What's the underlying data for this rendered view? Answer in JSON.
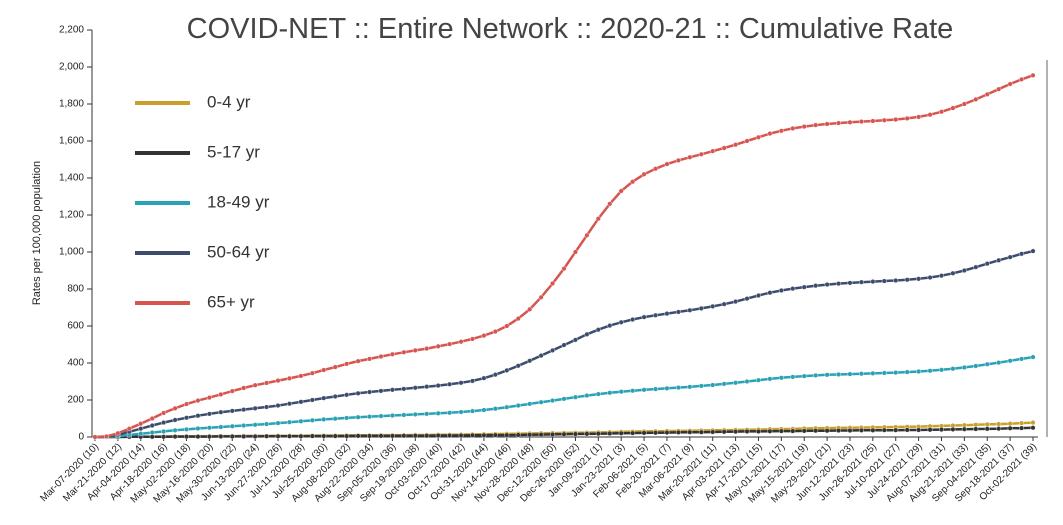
{
  "chart_data": {
    "type": "line",
    "title": "COVID-NET :: Entire Network :: 2020-21 :: Cumulative Rate",
    "y_label": "Rates per 100,000 population",
    "categories": [
      "Mar-07-2020 (10)",
      null,
      "Mar-21-2020 (12)",
      null,
      "Apr-04-2020 (14)",
      null,
      "Apr-18-2020 (16)",
      null,
      "May-02-2020 (18)",
      null,
      "May-16-2020 (20)",
      null,
      "May-30-2020 (22)",
      null,
      "Jun-13-2020 (24)",
      null,
      "Jun-27-2020 (26)",
      null,
      "Jul-11-2020 (28)",
      null,
      "Jul-25-2020 (30)",
      null,
      "Aug-08-2020 (32)",
      null,
      "Aug-22-2020 (34)",
      null,
      "Sep-05-2020 (36)",
      null,
      "Sep-19-2020 (38)",
      null,
      "Oct-03-2020 (40)",
      null,
      "Oct-17-2020 (42)",
      null,
      "Oct-31-2020 (44)",
      null,
      "Nov-14-2020 (46)",
      null,
      "Nov-28-2020 (48)",
      null,
      "Dec-12-2020 (50)",
      null,
      "Dec-26-2020 (52)",
      null,
      "Jan-09-2021 (1)",
      null,
      "Jan-23-2021 (3)",
      null,
      "Feb-06-2021 (5)",
      null,
      "Feb-20-2021 (7)",
      null,
      "Mar-06-2021 (9)",
      null,
      "Mar-20-2021 (11)",
      null,
      "Apr-03-2021 (13)",
      null,
      "Apr-17-2021 (15)",
      null,
      "May-01-2021 (17)",
      null,
      "May-15-2021 (19)",
      null,
      "May-29-2021 (21)",
      null,
      "Jun-12-2021 (23)",
      null,
      "Jun-26-2021 (25)",
      null,
      "Jul-10-2021 (27)",
      null,
      "Jul-24-2021 (29)",
      null,
      "Aug-07-2021 (31)",
      null,
      "Aug-21-2021 (33)",
      null,
      "Sep-04-2021 (35)",
      null,
      "Sep-18-2021 (37)",
      null,
      "Oct-02-2021 (39)"
    ],
    "series": [
      {
        "name": "0-4 yr",
        "color": "#c9a02c",
        "values": [
          0,
          0,
          1,
          1,
          2,
          2,
          3,
          3,
          4,
          4,
          5,
          5,
          5,
          6,
          6,
          6,
          7,
          7,
          7,
          8,
          8,
          8,
          9,
          9,
          9,
          10,
          10,
          10,
          11,
          11,
          12,
          12,
          13,
          14,
          15,
          16,
          17,
          18,
          19,
          20,
          21,
          22,
          23,
          24,
          25,
          26,
          28,
          29,
          30,
          31,
          32,
          33,
          34,
          35,
          36,
          37,
          38,
          39,
          40,
          42,
          43,
          44,
          46,
          47,
          48,
          49,
          50,
          51,
          52,
          53,
          54,
          55,
          56,
          58,
          60,
          62,
          64,
          66,
          68,
          70,
          72,
          75,
          78
        ]
      },
      {
        "name": "5-17 yr",
        "color": "#333333",
        "values": [
          0,
          0,
          0,
          1,
          1,
          1,
          1,
          2,
          2,
          2,
          2,
          3,
          3,
          3,
          3,
          4,
          4,
          4,
          4,
          5,
          5,
          5,
          5,
          6,
          6,
          6,
          6,
          7,
          7,
          7,
          8,
          8,
          8,
          9,
          9,
          10,
          10,
          11,
          12,
          13,
          14,
          15,
          16,
          17,
          18,
          19,
          20,
          21,
          22,
          23,
          24,
          25,
          26,
          26,
          27,
          28,
          29,
          30,
          30,
          31,
          32,
          32,
          33,
          34,
          34,
          35,
          35,
          36,
          36,
          37,
          37,
          38,
          38,
          39,
          40,
          41,
          42,
          43,
          44,
          45,
          47,
          48,
          50
        ]
      },
      {
        "name": "18-49 yr",
        "color": "#2aa1b5",
        "values": [
          0,
          1,
          5,
          11,
          18,
          24,
          30,
          36,
          41,
          46,
          50,
          54,
          58,
          62,
          66,
          70,
          75,
          80,
          85,
          90,
          95,
          99,
          103,
          107,
          110,
          113,
          116,
          119,
          122,
          125,
          128,
          131,
          135,
          140,
          146,
          153,
          161,
          170,
          179,
          188,
          197,
          206,
          215,
          224,
          232,
          239,
          245,
          250,
          255,
          259,
          263,
          267,
          271,
          276,
          281,
          287,
          293,
          300,
          307,
          314,
          320,
          325,
          329,
          333,
          336,
          338,
          340,
          342,
          344,
          346,
          348,
          351,
          354,
          358,
          363,
          369,
          376,
          384,
          393,
          402,
          412,
          422,
          432
        ]
      },
      {
        "name": "50-64 yr",
        "color": "#3d4c6d",
        "values": [
          0,
          2,
          12,
          28,
          45,
          62,
          78,
          92,
          104,
          115,
          125,
          134,
          141,
          148,
          155,
          162,
          170,
          180,
          190,
          200,
          210,
          219,
          228,
          236,
          243,
          249,
          255,
          260,
          266,
          272,
          278,
          285,
          293,
          303,
          318,
          337,
          360,
          385,
          412,
          440,
          468,
          497,
          525,
          555,
          580,
          602,
          620,
          635,
          648,
          658,
          667,
          676,
          685,
          695,
          706,
          718,
          732,
          748,
          765,
          780,
          792,
          802,
          810,
          818,
          824,
          829,
          833,
          837,
          840,
          843,
          846,
          850,
          855,
          862,
          872,
          885,
          900,
          918,
          937,
          955,
          972,
          990,
          1005
        ]
      },
      {
        "name": "65+ yr",
        "color": "#d65550",
        "values": [
          0,
          3,
          20,
          45,
          72,
          100,
          130,
          155,
          178,
          197,
          213,
          230,
          248,
          265,
          280,
          292,
          305,
          317,
          330,
          345,
          362,
          378,
          395,
          410,
          422,
          435,
          447,
          458,
          468,
          478,
          490,
          502,
          515,
          530,
          548,
          570,
          600,
          640,
          690,
          755,
          830,
          910,
          1000,
          1090,
          1180,
          1260,
          1330,
          1380,
          1420,
          1450,
          1475,
          1495,
          1512,
          1528,
          1545,
          1562,
          1580,
          1600,
          1620,
          1640,
          1655,
          1668,
          1678,
          1686,
          1692,
          1697,
          1701,
          1705,
          1708,
          1712,
          1716,
          1722,
          1730,
          1742,
          1758,
          1778,
          1800,
          1825,
          1852,
          1880,
          1908,
          1933,
          1955
        ]
      }
    ],
    "ylim": [
      0,
      2200
    ],
    "yticks": [
      0,
      200,
      400,
      600,
      800,
      {
        "value": 1000,
        "label": "1,000"
      },
      {
        "value": 1200,
        "label": "1,200"
      },
      {
        "value": 1400,
        "label": "1,400"
      },
      {
        "value": 1600,
        "label": "1,600"
      },
      {
        "value": 1800,
        "label": "1,800"
      },
      {
        "value": 2000,
        "label": "2,000"
      },
      {
        "value": 2200,
        "label": "2,200"
      }
    ],
    "grid": false
  }
}
